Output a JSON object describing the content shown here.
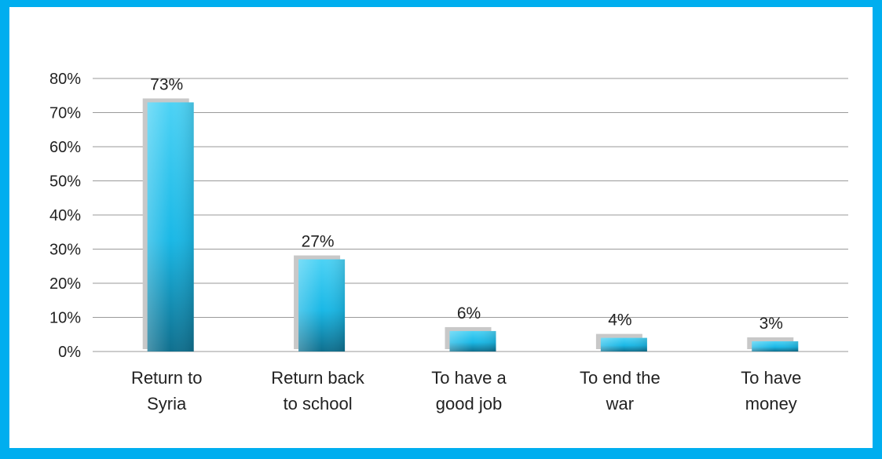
{
  "colors": {
    "frame": "#00aeef",
    "bar_top": "#4cd2f5",
    "bar_bottom": "#0f6f8e",
    "bar_mid": "#1ab8e6",
    "shadow": "#c8c8c8",
    "grid": "#9a9a9a"
  },
  "chart_data": {
    "type": "bar",
    "categories": [
      [
        "Return to",
        "Syria"
      ],
      [
        "Return back",
        "to school"
      ],
      [
        "To have a",
        "good job"
      ],
      [
        "To end the",
        "war"
      ],
      [
        "To have",
        "money"
      ]
    ],
    "values": [
      73,
      27,
      6,
      4,
      3
    ],
    "value_labels": [
      "73%",
      "27%",
      "6%",
      "4%",
      "3%"
    ],
    "yticks": [
      "0%",
      "10%",
      "20%",
      "30%",
      "40%",
      "50%",
      "60%",
      "70%",
      "80%"
    ],
    "ylim": [
      0,
      80
    ],
    "grid": true,
    "legend": "none"
  }
}
